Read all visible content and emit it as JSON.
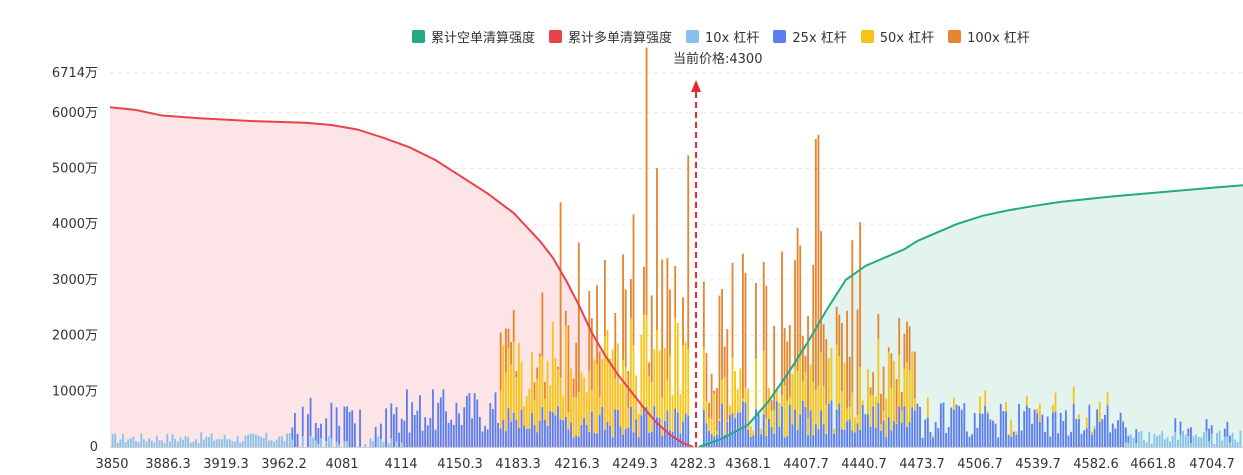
{
  "legend": [
    {
      "label": "累计空单清算强度",
      "color": "#24a985"
    },
    {
      "label": "累计多单清算强度",
      "color": "#e9434a"
    },
    {
      "label": "10x 杠杆",
      "color": "#86c2ec"
    },
    {
      "label": "25x 杠杆",
      "color": "#5b7df0"
    },
    {
      "label": "50x 杠杆",
      "color": "#f6c416"
    },
    {
      "label": "100x 杠杆",
      "color": "#e6852f"
    }
  ],
  "current_price": {
    "label": "当前价格:4300",
    "value": 4300
  },
  "chart_data": {
    "type": "bar",
    "xlabel": "",
    "ylabel": "",
    "ylim": [
      0,
      6714
    ],
    "y_max_label": "6714万",
    "y_ticks": [
      {
        "value": 0,
        "label": "0"
      },
      {
        "value": 1000,
        "label": "1000万"
      },
      {
        "value": 2000,
        "label": "2000万"
      },
      {
        "value": 3000,
        "label": "3000万"
      },
      {
        "value": 4000,
        "label": "4000万"
      },
      {
        "value": 5000,
        "label": "5000万"
      },
      {
        "value": 6000,
        "label": "6000万"
      }
    ],
    "x_range": [
      3850,
      4720
    ],
    "x_tick_labels": [
      "3850",
      "3886.3",
      "3919.3",
      "3962.2",
      "4081",
      "4114",
      "4150.3",
      "4183.3",
      "4216.3",
      "4249.3",
      "4282.3",
      "4368.1",
      "4407.7",
      "4440.7",
      "4473.7",
      "4506.7",
      "4539.7",
      "4582.6",
      "4661.8",
      "4704.7"
    ],
    "price_line": 4300,
    "cumulative_long": {
      "name": "累计多单清算强度",
      "x": [
        3850,
        3870,
        3890,
        3920,
        3960,
        4000,
        4020,
        4040,
        4060,
        4080,
        4100,
        4120,
        4140,
        4160,
        4170,
        4180,
        4190,
        4200,
        4210,
        4220,
        4230,
        4240,
        4250,
        4260,
        4270,
        4280,
        4290,
        4298
      ],
      "y": [
        6100,
        6050,
        5950,
        5900,
        5850,
        5820,
        5780,
        5700,
        5550,
        5380,
        5150,
        4850,
        4550,
        4200,
        3950,
        3700,
        3400,
        3000,
        2550,
        2050,
        1650,
        1300,
        1000,
        700,
        430,
        220,
        70,
        0
      ]
    },
    "cumulative_short": {
      "name": "累计空单清算强度",
      "x": [
        4302,
        4320,
        4340,
        4355,
        4370,
        4385,
        4400,
        4415,
        4430,
        4445,
        4460,
        4470,
        4485,
        4500,
        4520,
        4540,
        4560,
        4580,
        4600,
        4620,
        4640,
        4660,
        4680,
        4700,
        4720
      ],
      "y": [
        0,
        150,
        400,
        800,
        1300,
        1850,
        2450,
        3000,
        3250,
        3400,
        3550,
        3700,
        3850,
        4000,
        4150,
        4250,
        4330,
        4400,
        4450,
        4500,
        4540,
        4580,
        4620,
        4660,
        4700
      ]
    }
  }
}
